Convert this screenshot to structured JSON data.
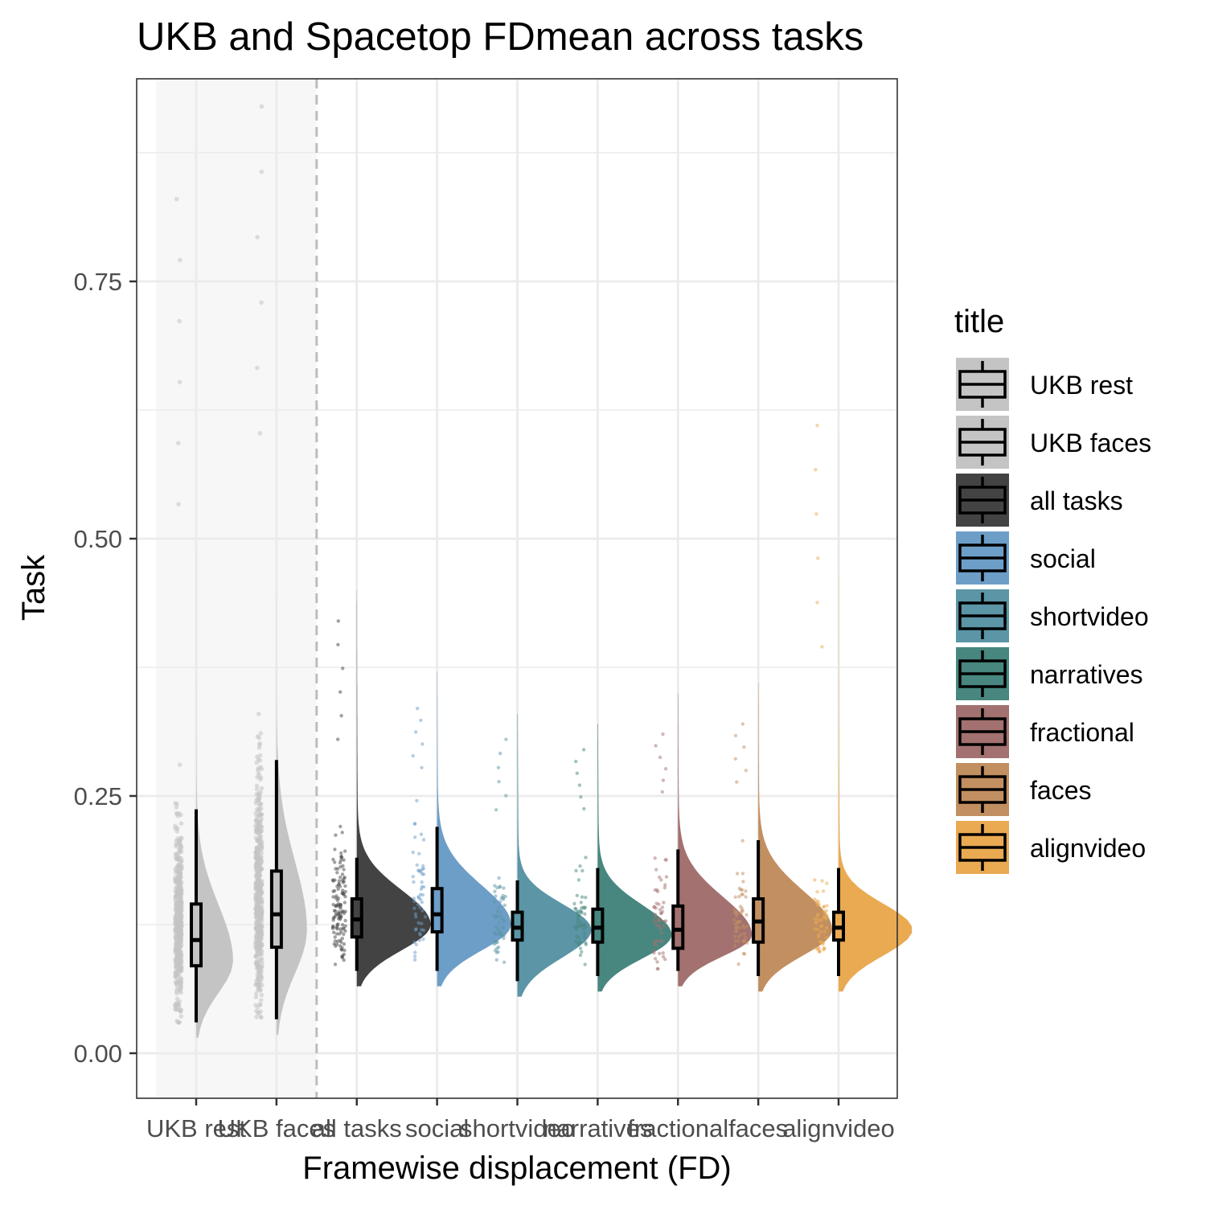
{
  "chart_data": {
    "type": "raincloud",
    "title": "UKB and Spacetop FDmean across tasks",
    "xlabel": "Framewise displacement (FD)",
    "ylabel": "Task",
    "ylim": [
      -0.04,
      0.95
    ],
    "yticks": [
      0.0,
      0.25,
      0.5,
      0.75
    ],
    "ytick_labels": [
      "0.00",
      "0.25",
      "0.50",
      "0.75"
    ],
    "grid": true,
    "legend": {
      "title": "title",
      "position": "right"
    },
    "highlight_region": {
      "from_category": "UKB rest",
      "to_category": "UKB faces",
      "divider": "dashed"
    },
    "categories": [
      "UKB rest",
      "UKB faces",
      "all tasks",
      "social",
      "shortvideo",
      "narratives",
      "fractional",
      "faces",
      "alignvideo"
    ],
    "series": [
      {
        "name": "UKB rest",
        "color": "#c4c4c4",
        "whisker_low": 0.03,
        "q1": 0.085,
        "median": 0.11,
        "q3": 0.145,
        "whisker_high": 0.237,
        "density_peak": 0.09,
        "density_max": 0.84,
        "points": {
          "n": 520,
          "min": 0.03,
          "max": 0.83,
          "center": 0.11
        }
      },
      {
        "name": "UKB faces",
        "color": "#c4c4c4",
        "whisker_low": 0.033,
        "q1": 0.103,
        "median": 0.135,
        "q3": 0.177,
        "whisker_high": 0.285,
        "density_peak": 0.12,
        "density_max": 0.92,
        "points": {
          "n": 520,
          "min": 0.035,
          "max": 0.92,
          "center": 0.135
        }
      },
      {
        "name": "all tasks",
        "color": "#434343",
        "whisker_low": 0.08,
        "q1": 0.113,
        "median": 0.13,
        "q3": 0.15,
        "whisker_high": 0.19,
        "density_peak": 0.125,
        "density_max": 0.45,
        "points": {
          "n": 130,
          "min": 0.082,
          "max": 0.42,
          "center": 0.13
        }
      },
      {
        "name": "social",
        "color": "#6d9ec8",
        "whisker_low": 0.08,
        "q1": 0.118,
        "median": 0.135,
        "q3": 0.16,
        "whisker_high": 0.22,
        "density_peak": 0.125,
        "density_max": 0.37,
        "points": {
          "n": 60,
          "min": 0.08,
          "max": 0.335,
          "center": 0.135
        }
      },
      {
        "name": "shortvideo",
        "color": "#5b95a6",
        "whisker_low": 0.07,
        "q1": 0.11,
        "median": 0.122,
        "q3": 0.137,
        "whisker_high": 0.168,
        "density_peak": 0.12,
        "density_max": 0.33,
        "points": {
          "n": 60,
          "min": 0.07,
          "max": 0.305,
          "center": 0.122
        }
      },
      {
        "name": "narratives",
        "color": "#47877f",
        "whisker_low": 0.075,
        "q1": 0.108,
        "median": 0.122,
        "q3": 0.14,
        "whisker_high": 0.18,
        "density_peak": 0.115,
        "density_max": 0.32,
        "points": {
          "n": 60,
          "min": 0.075,
          "max": 0.295,
          "center": 0.122
        }
      },
      {
        "name": "fractional",
        "color": "#a3716f",
        "whisker_low": 0.08,
        "q1": 0.102,
        "median": 0.12,
        "q3": 0.143,
        "whisker_high": 0.198,
        "density_peak": 0.115,
        "density_max": 0.35,
        "points": {
          "n": 60,
          "min": 0.082,
          "max": 0.31,
          "center": 0.12
        }
      },
      {
        "name": "faces",
        "color": "#c28f61",
        "whisker_low": 0.075,
        "q1": 0.108,
        "median": 0.128,
        "q3": 0.15,
        "whisker_high": 0.207,
        "density_peak": 0.12,
        "density_max": 0.36,
        "points": {
          "n": 60,
          "min": 0.075,
          "max": 0.32,
          "center": 0.128
        }
      },
      {
        "name": "alignvideo",
        "color": "#e9aa52",
        "whisker_low": 0.075,
        "q1": 0.11,
        "median": 0.122,
        "q3": 0.137,
        "whisker_high": 0.18,
        "density_peak": 0.12,
        "density_max": 0.63,
        "points": {
          "n": 60,
          "min": 0.075,
          "max": 0.61,
          "center": 0.122
        }
      }
    ]
  }
}
